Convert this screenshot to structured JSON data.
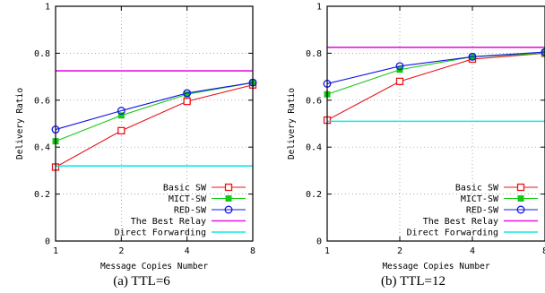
{
  "chart_data": [
    {
      "type": "line",
      "caption": "(a) TTL=6",
      "xlabel": "Message Copies Number",
      "ylabel": "Delivery Ratio",
      "x_ticks": [
        "1",
        "2",
        "4",
        "8"
      ],
      "y_ticks": [
        "0",
        "0.2",
        "0.4",
        "0.6",
        "0.8",
        "1"
      ],
      "ylim": [
        0,
        1
      ],
      "grid": "dotted",
      "legend_position": "bottom-right",
      "series": [
        {
          "name": "Basic SW",
          "color": "#e8141a",
          "marker": "square-open",
          "values": [
            0.315,
            0.47,
            0.595,
            0.665
          ]
        },
        {
          "name": "MICT-SW",
          "color": "#14c814",
          "marker": "square-filled",
          "values": [
            0.425,
            0.535,
            0.625,
            0.675
          ]
        },
        {
          "name": "RED-SW",
          "color": "#1414e6",
          "marker": "circle-open",
          "values": [
            0.475,
            0.555,
            0.63,
            0.675
          ]
        },
        {
          "name": "The Best Relay",
          "color": "#e614e6",
          "marker": "none",
          "values": [
            0.725,
            0.725,
            0.725,
            0.725
          ]
        },
        {
          "name": "Direct Forwarding",
          "color": "#14e6e6",
          "marker": "none",
          "values": [
            0.32,
            0.32,
            0.32,
            0.32
          ]
        }
      ]
    },
    {
      "type": "line",
      "caption": "(b) TTL=12",
      "xlabel": "Message Copies Number",
      "ylabel": "Delivery Ratio",
      "x_ticks": [
        "1",
        "2",
        "4",
        "8"
      ],
      "y_ticks": [
        "0",
        "0.2",
        "0.4",
        "0.6",
        "0.8",
        "1"
      ],
      "ylim": [
        0,
        1
      ],
      "grid": "dotted",
      "legend_position": "bottom-right",
      "series": [
        {
          "name": "Basic SW",
          "color": "#e8141a",
          "marker": "square-open",
          "values": [
            0.515,
            0.68,
            0.775,
            0.8
          ]
        },
        {
          "name": "MICT-SW",
          "color": "#14c814",
          "marker": "square-filled",
          "values": [
            0.625,
            0.73,
            0.785,
            0.8
          ]
        },
        {
          "name": "RED-SW",
          "color": "#1414e6",
          "marker": "circle-open",
          "values": [
            0.67,
            0.745,
            0.785,
            0.805
          ]
        },
        {
          "name": "The Best Relay",
          "color": "#e614e6",
          "marker": "none",
          "values": [
            0.825,
            0.825,
            0.825,
            0.825
          ]
        },
        {
          "name": "Direct Forwarding",
          "color": "#14e6e6",
          "marker": "none",
          "values": [
            0.51,
            0.51,
            0.51,
            0.51
          ]
        }
      ]
    }
  ]
}
